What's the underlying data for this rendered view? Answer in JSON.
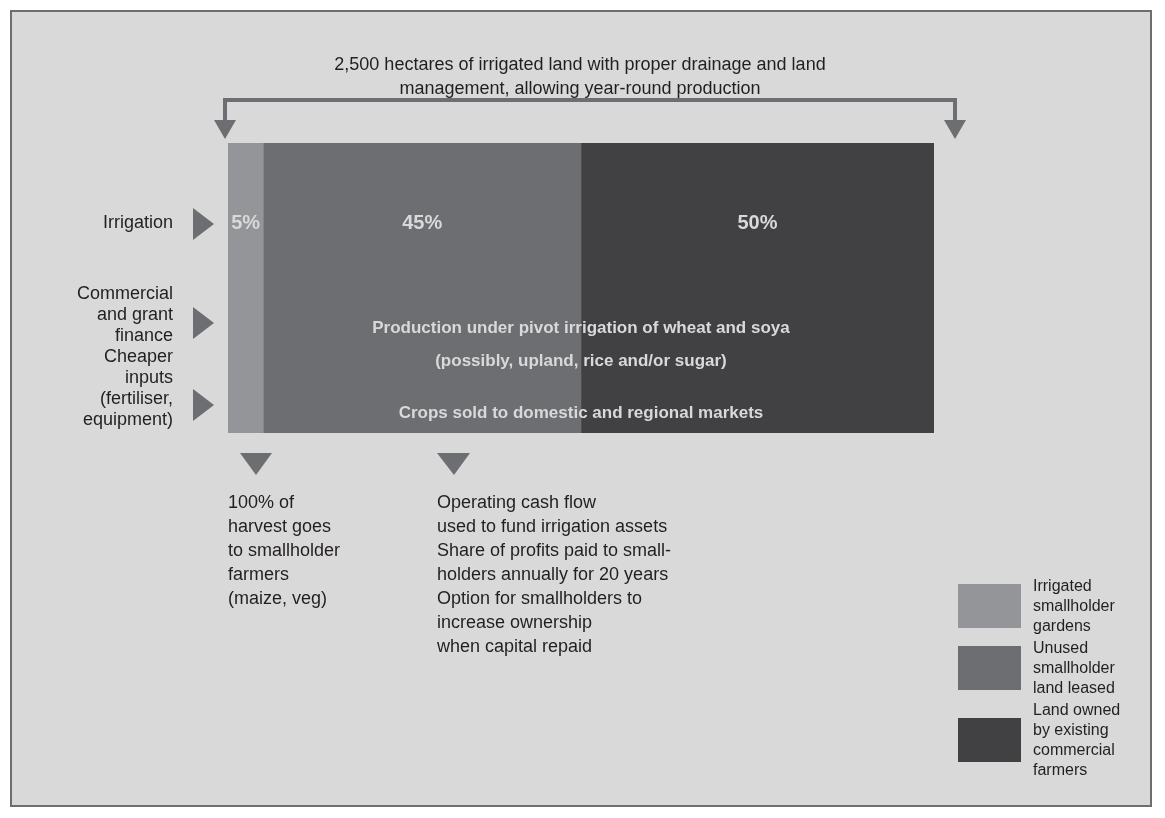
{
  "chart_data": {
    "type": "bar",
    "orientation": "horizontal",
    "stacked": true,
    "categories": [
      null
    ],
    "series": [
      {
        "name": "Irrigated smallholder gardens",
        "color": "#939598",
        "values": [
          5
        ],
        "value_labels": [
          "5%"
        ]
      },
      {
        "name": "Unused smallholder land leased",
        "color": "#6d6e71",
        "values": [
          45
        ],
        "value_labels": [
          "45%"
        ]
      },
      {
        "name": "Land owned by existing commercial farmers",
        "color": "#414042",
        "values": [
          50
        ],
        "value_labels": [
          "50%"
        ]
      }
    ],
    "legend": "bottom right",
    "annotations": [
      "2,500 hectares of irrigated land with proper drainage and land management, allowing year-round production",
      "Irrigation",
      "Commercial\nand grant\nfinance",
      "Cheaper\ninputs\n(fertiliser,\nequipment)",
      "Production under pivot irrigation of wheat and soya\n(possibly, upland, rice and/or sugar)",
      "Crops sold to domestic and regional markets",
      "100% of\nharvest goes\nto smallholder\nfarmers\n(maize, veg)",
      "Operating cash flow\nused to fund irrigation assets\nShare of profits paid to small-\nholders annually for 20 years\nOption for smallholders to\nincrease ownership\nwhen capital repaid"
    ]
  }
}
